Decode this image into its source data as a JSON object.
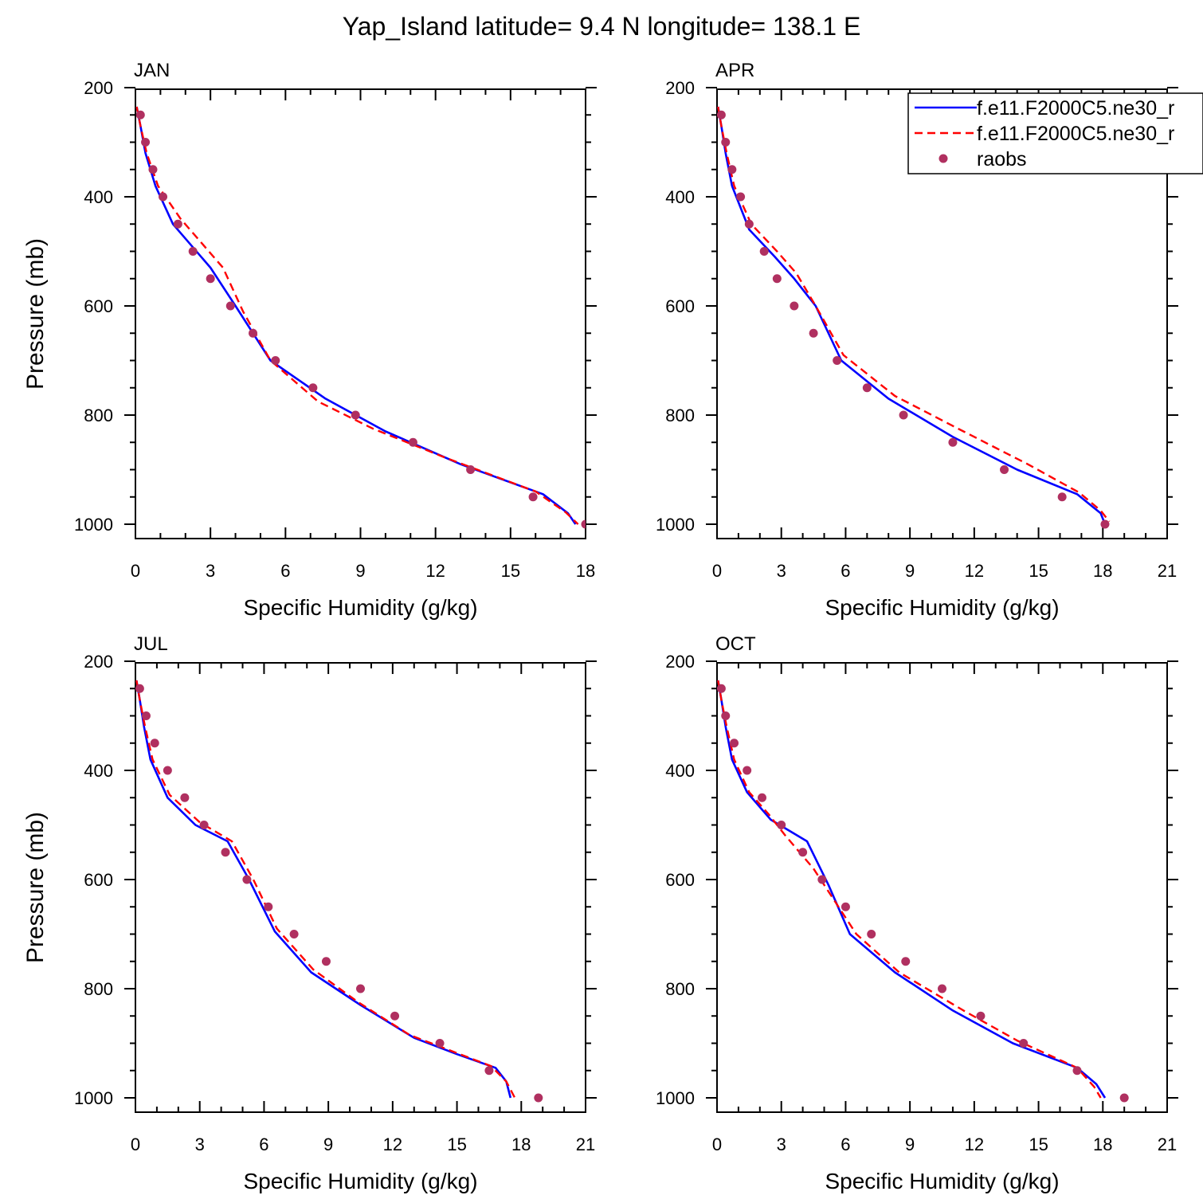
{
  "title": "Yap_Island  latitude= 9.4 N longitude= 138.1 E",
  "colors": {
    "model1": "#0000ff",
    "model2": "#ff0000",
    "raobs": "#b03060",
    "frame": "#000000"
  },
  "legend": {
    "position": "top-right of APR panel",
    "entries": [
      {
        "label": "f.e11.F2000C5.ne30_r",
        "style": "solid",
        "color": "#0000ff"
      },
      {
        "label": "f.e11.F2000C5.ne30_r",
        "style": "dashed",
        "color": "#ff0000"
      },
      {
        "label": "raobs",
        "style": "marker",
        "color": "#b03060"
      }
    ]
  },
  "chart_data": [
    {
      "type": "line",
      "panel_label": "JAN",
      "xlabel": "Specific Humidity (g/kg)",
      "ylabel": "Pressure (mb)",
      "xlim": [
        0,
        18
      ],
      "xticks": [
        0,
        3,
        6,
        9,
        12,
        15,
        18
      ],
      "ylim": [
        200,
        1000
      ],
      "yticks": [
        200,
        400,
        600,
        800,
        1000
      ],
      "y_inverted": true,
      "series": [
        {
          "style": "solid",
          "x": [
            0.05,
            0.2,
            0.4,
            0.8,
            1.5,
            3.0,
            4.0,
            5.4,
            7.6,
            10.0,
            13.0,
            16.3,
            17.3,
            17.6
          ],
          "y": [
            235,
            270,
            320,
            380,
            450,
            530,
            600,
            700,
            770,
            830,
            890,
            945,
            980,
            1000
          ]
        },
        {
          "style": "dashed",
          "x": [
            0.05,
            0.2,
            0.45,
            0.9,
            1.8,
            3.5,
            4.3,
            5.4,
            7.3,
            9.5,
            12.5,
            16.0,
            17.2,
            17.7
          ],
          "y": [
            235,
            270,
            320,
            380,
            440,
            530,
            610,
            700,
            775,
            825,
            880,
            940,
            978,
            1000
          ]
        },
        {
          "style": "marker",
          "x": [
            0.2,
            0.4,
            0.7,
            1.1,
            1.7,
            2.3,
            3.0,
            3.8,
            4.7,
            5.6,
            7.1,
            8.8,
            11.1,
            13.4,
            15.9,
            18.0
          ],
          "y": [
            250,
            300,
            350,
            400,
            450,
            500,
            550,
            600,
            650,
            700,
            750,
            800,
            850,
            900,
            950,
            1000
          ]
        }
      ]
    },
    {
      "type": "line",
      "panel_label": "APR",
      "xlabel": "Specific Humidity (g/kg)",
      "ylabel": "",
      "xlim": [
        0,
        21
      ],
      "xticks": [
        0,
        3,
        6,
        9,
        12,
        15,
        18,
        21
      ],
      "ylim": [
        200,
        1000
      ],
      "yticks": [
        200,
        400,
        600,
        800,
        1000
      ],
      "y_inverted": true,
      "series": [
        {
          "style": "solid",
          "x": [
            0.05,
            0.2,
            0.4,
            0.7,
            1.5,
            2.7,
            3.6,
            4.6,
            5.8,
            8.0,
            11.0,
            14.0,
            16.8,
            17.9,
            18.1
          ],
          "y": [
            235,
            270,
            320,
            380,
            460,
            510,
            550,
            600,
            700,
            770,
            840,
            900,
            945,
            980,
            1000
          ]
        },
        {
          "style": "dashed",
          "x": [
            0.05,
            0.2,
            0.45,
            0.8,
            1.6,
            2.8,
            3.7,
            4.6,
            5.9,
            8.3,
            11.5,
            14.5,
            16.9,
            17.9,
            18.3
          ],
          "y": [
            235,
            270,
            320,
            380,
            450,
            500,
            540,
            600,
            690,
            765,
            830,
            890,
            942,
            975,
            995
          ]
        },
        {
          "style": "marker",
          "x": [
            0.2,
            0.4,
            0.7,
            1.1,
            1.5,
            2.2,
            2.8,
            3.6,
            4.5,
            5.6,
            7.0,
            8.7,
            11.0,
            13.4,
            16.1,
            18.1
          ],
          "y": [
            250,
            300,
            350,
            400,
            450,
            500,
            550,
            600,
            650,
            700,
            750,
            800,
            850,
            900,
            950,
            1000
          ]
        }
      ]
    },
    {
      "type": "line",
      "panel_label": "JUL",
      "xlabel": "Specific Humidity (g/kg)",
      "ylabel": "Pressure (mb)",
      "xlim": [
        0,
        21
      ],
      "xticks": [
        0,
        3,
        6,
        9,
        12,
        15,
        18,
        21
      ],
      "ylim": [
        200,
        1000
      ],
      "yticks": [
        200,
        400,
        600,
        800,
        1000
      ],
      "y_inverted": true,
      "series": [
        {
          "style": "solid",
          "x": [
            0.05,
            0.2,
            0.4,
            0.7,
            1.5,
            2.8,
            4.3,
            5.3,
            6.5,
            8.2,
            10.5,
            13.0,
            15.0,
            16.8,
            17.3,
            17.5
          ],
          "y": [
            235,
            270,
            320,
            380,
            450,
            500,
            530,
            600,
            695,
            770,
            830,
            890,
            920,
            945,
            970,
            1000
          ]
        },
        {
          "style": "dashed",
          "x": [
            0.05,
            0.2,
            0.45,
            0.8,
            1.6,
            3.0,
            4.5,
            5.5,
            6.6,
            8.3,
            10.4,
            12.8,
            15.0,
            16.6,
            17.3,
            17.7
          ],
          "y": [
            235,
            270,
            320,
            380,
            445,
            495,
            530,
            600,
            690,
            765,
            825,
            885,
            918,
            942,
            970,
            1000
          ]
        },
        {
          "style": "marker",
          "x": [
            0.2,
            0.5,
            0.9,
            1.5,
            2.3,
            3.2,
            4.2,
            5.2,
            6.2,
            7.4,
            8.9,
            10.5,
            12.1,
            14.2,
            16.5,
            18.8
          ],
          "y": [
            250,
            300,
            350,
            400,
            450,
            500,
            550,
            600,
            650,
            700,
            750,
            800,
            850,
            900,
            950,
            1000
          ]
        }
      ]
    },
    {
      "type": "line",
      "panel_label": "OCT",
      "xlabel": "Specific Humidity (g/kg)",
      "ylabel": "",
      "xlim": [
        0,
        21
      ],
      "xticks": [
        0,
        3,
        6,
        9,
        12,
        15,
        18,
        21
      ],
      "ylim": [
        200,
        1000
      ],
      "yticks": [
        200,
        400,
        600,
        800,
        1000
      ],
      "y_inverted": true,
      "series": [
        {
          "style": "solid",
          "x": [
            0.05,
            0.2,
            0.4,
            0.7,
            1.4,
            2.5,
            4.2,
            5.2,
            6.2,
            8.3,
            11.0,
            13.8,
            16.8,
            17.7,
            18.1
          ],
          "y": [
            235,
            270,
            320,
            380,
            440,
            490,
            530,
            610,
            700,
            770,
            840,
            900,
            945,
            975,
            1000
          ]
        },
        {
          "style": "dashed",
          "x": [
            0.05,
            0.2,
            0.45,
            0.8,
            1.5,
            2.4,
            3.2,
            4.5,
            5.5,
            6.5,
            8.5,
            11.5,
            14.0,
            16.8,
            17.6,
            17.9
          ],
          "y": [
            235,
            270,
            320,
            380,
            440,
            480,
            520,
            580,
            640,
            700,
            770,
            840,
            895,
            945,
            980,
            1000
          ]
        },
        {
          "style": "marker",
          "x": [
            0.2,
            0.4,
            0.8,
            1.4,
            2.1,
            3.0,
            4.0,
            4.9,
            6.0,
            7.2,
            8.8,
            10.5,
            12.3,
            14.3,
            16.8,
            19.0
          ],
          "y": [
            250,
            300,
            350,
            400,
            450,
            500,
            550,
            600,
            650,
            700,
            750,
            800,
            850,
            900,
            950,
            1000
          ]
        }
      ]
    }
  ]
}
